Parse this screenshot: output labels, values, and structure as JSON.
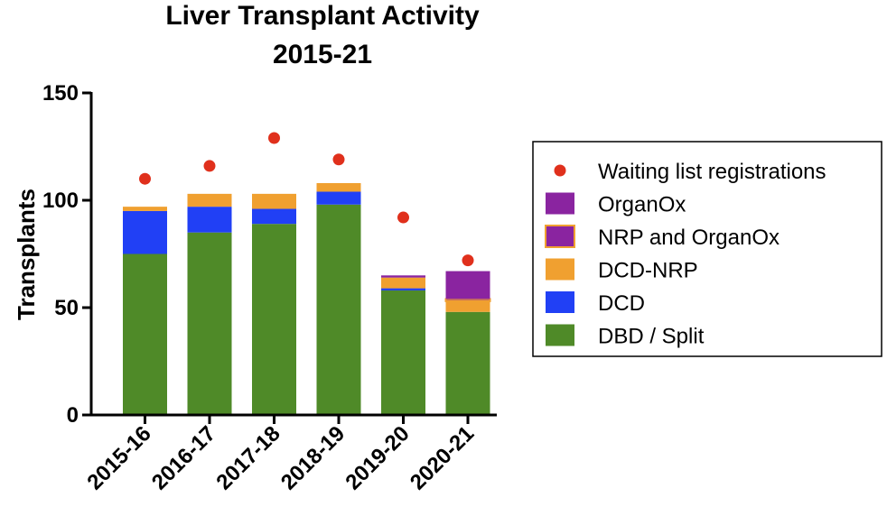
{
  "chart_data": {
    "type": "bar",
    "stacked": true,
    "title": [
      "Liver Transplant Activity",
      "2015-21"
    ],
    "xlabel": "",
    "ylabel": "Transplants",
    "ylim": [
      0,
      150
    ],
    "yticks": [
      0,
      50,
      100,
      150
    ],
    "categories": [
      "2015-16",
      "2016-17",
      "2017-18",
      "2018-19",
      "2019-20",
      "2020-21"
    ],
    "series": [
      {
        "name": "DBD / Split",
        "color": "#4f8a28",
        "values": [
          75,
          85,
          89,
          98,
          58,
          48
        ]
      },
      {
        "name": "DCD",
        "color": "#2140f5",
        "values": [
          20,
          12,
          7,
          6,
          1,
          0
        ]
      },
      {
        "name": "DCD-NRP",
        "color": "#f0a030",
        "values": [
          2,
          6,
          7,
          4,
          5,
          5
        ]
      },
      {
        "name": "NRP and OrganOx",
        "color": "#8a24a0",
        "border": "#f0a030",
        "values": [
          0,
          0,
          0,
          0,
          0,
          1
        ]
      },
      {
        "name": "OrganOx",
        "color": "#8a24a0",
        "values": [
          0,
          0,
          0,
          0,
          1,
          13
        ]
      }
    ],
    "markers": {
      "name": "Waiting list registrations",
      "color": "#e0301c",
      "values": [
        110,
        116,
        129,
        119,
        92,
        72
      ]
    },
    "legend": {
      "position": "right",
      "order": [
        "Waiting list registrations",
        "OrganOx",
        "NRP and OrganOx",
        "DCD-NRP",
        "DCD",
        "DBD / Split"
      ]
    },
    "grid": false
  }
}
